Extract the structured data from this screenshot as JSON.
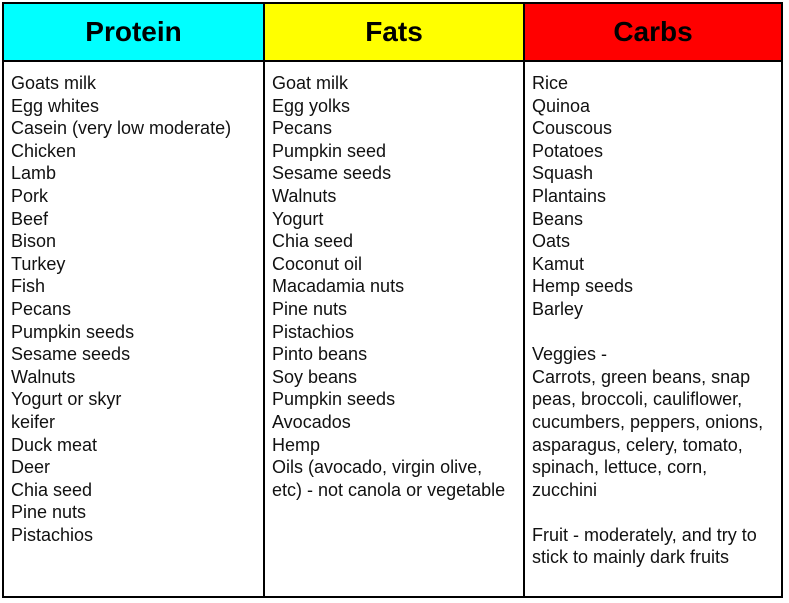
{
  "headers": {
    "protein": "Protein",
    "fats": "Fats",
    "carbs": "Carbs"
  },
  "colors": {
    "protein_header": "#00ffff",
    "fats_header": "#ffff00",
    "carbs_header": "#ff0000"
  },
  "protein": [
    "Goats milk",
    "Egg whites",
    "Casein (very low moderate)",
    "Chicken",
    "Lamb",
    "Pork",
    "Beef",
    "Bison",
    "Turkey",
    "Fish",
    "Pecans",
    "Pumpkin seeds",
    "Sesame seeds",
    "Walnuts",
    "Yogurt or skyr",
    "keifer",
    "Duck meat",
    "Deer",
    "Chia seed",
    "Pine nuts",
    "Pistachios"
  ],
  "fats": [
    "Goat milk",
    "Egg yolks",
    "Pecans",
    "Pumpkin seed",
    "Sesame seeds",
    "Walnuts",
    "Yogurt",
    "Chia seed",
    "Coconut oil",
    "Macadamia nuts",
    "Pine nuts",
    "Pistachios",
    "Pinto beans",
    "Soy beans",
    "Pumpkin seeds",
    "Avocados",
    "Hemp",
    "Oils (avocado, virgin olive,",
    "etc) - not canola or vegetable"
  ],
  "carbs": {
    "items": [
      "Rice",
      "Quinoa",
      "Couscous",
      "Potatoes",
      "Squash",
      "Plantains",
      "Beans",
      "Oats",
      "Kamut",
      "Hemp seeds",
      "Barley"
    ],
    "veggies_title": "Veggies -",
    "veggies_text": "Carrots, green beans, snap peas, broccoli, cauliflower, cucumbers, peppers, onions, asparagus, celery, tomato, spinach, lettuce, corn, zucchini",
    "fruit_text": "Fruit - moderately, and try to stick to mainly dark fruits"
  }
}
